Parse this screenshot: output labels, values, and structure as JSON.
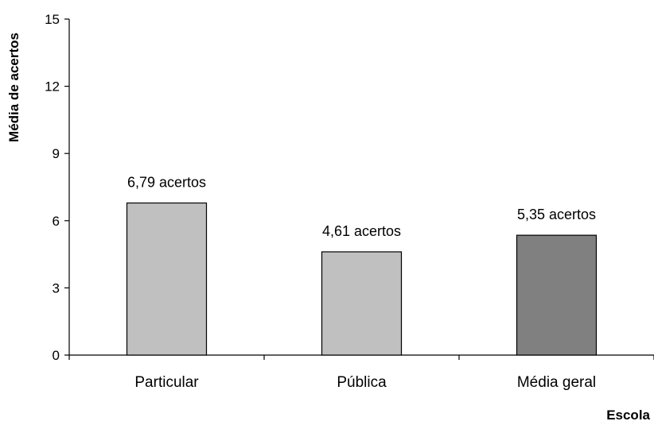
{
  "chart_data": {
    "type": "bar",
    "title": "",
    "xlabel": "Escola",
    "ylabel": "Média de acertos",
    "categories": [
      "Particular",
      "Pública",
      "Média geral"
    ],
    "values": [
      6.79,
      4.61,
      5.35
    ],
    "data_labels": [
      "6,79 acertos",
      "4,61 acertos",
      "5,35 acertos"
    ],
    "bar_colors": [
      "#c0c0c0",
      "#c0c0c0",
      "#808080"
    ],
    "ylim": [
      0,
      15
    ],
    "yticks": [
      0,
      3,
      6,
      9,
      12,
      15
    ],
    "grid": false,
    "legend": "none"
  }
}
